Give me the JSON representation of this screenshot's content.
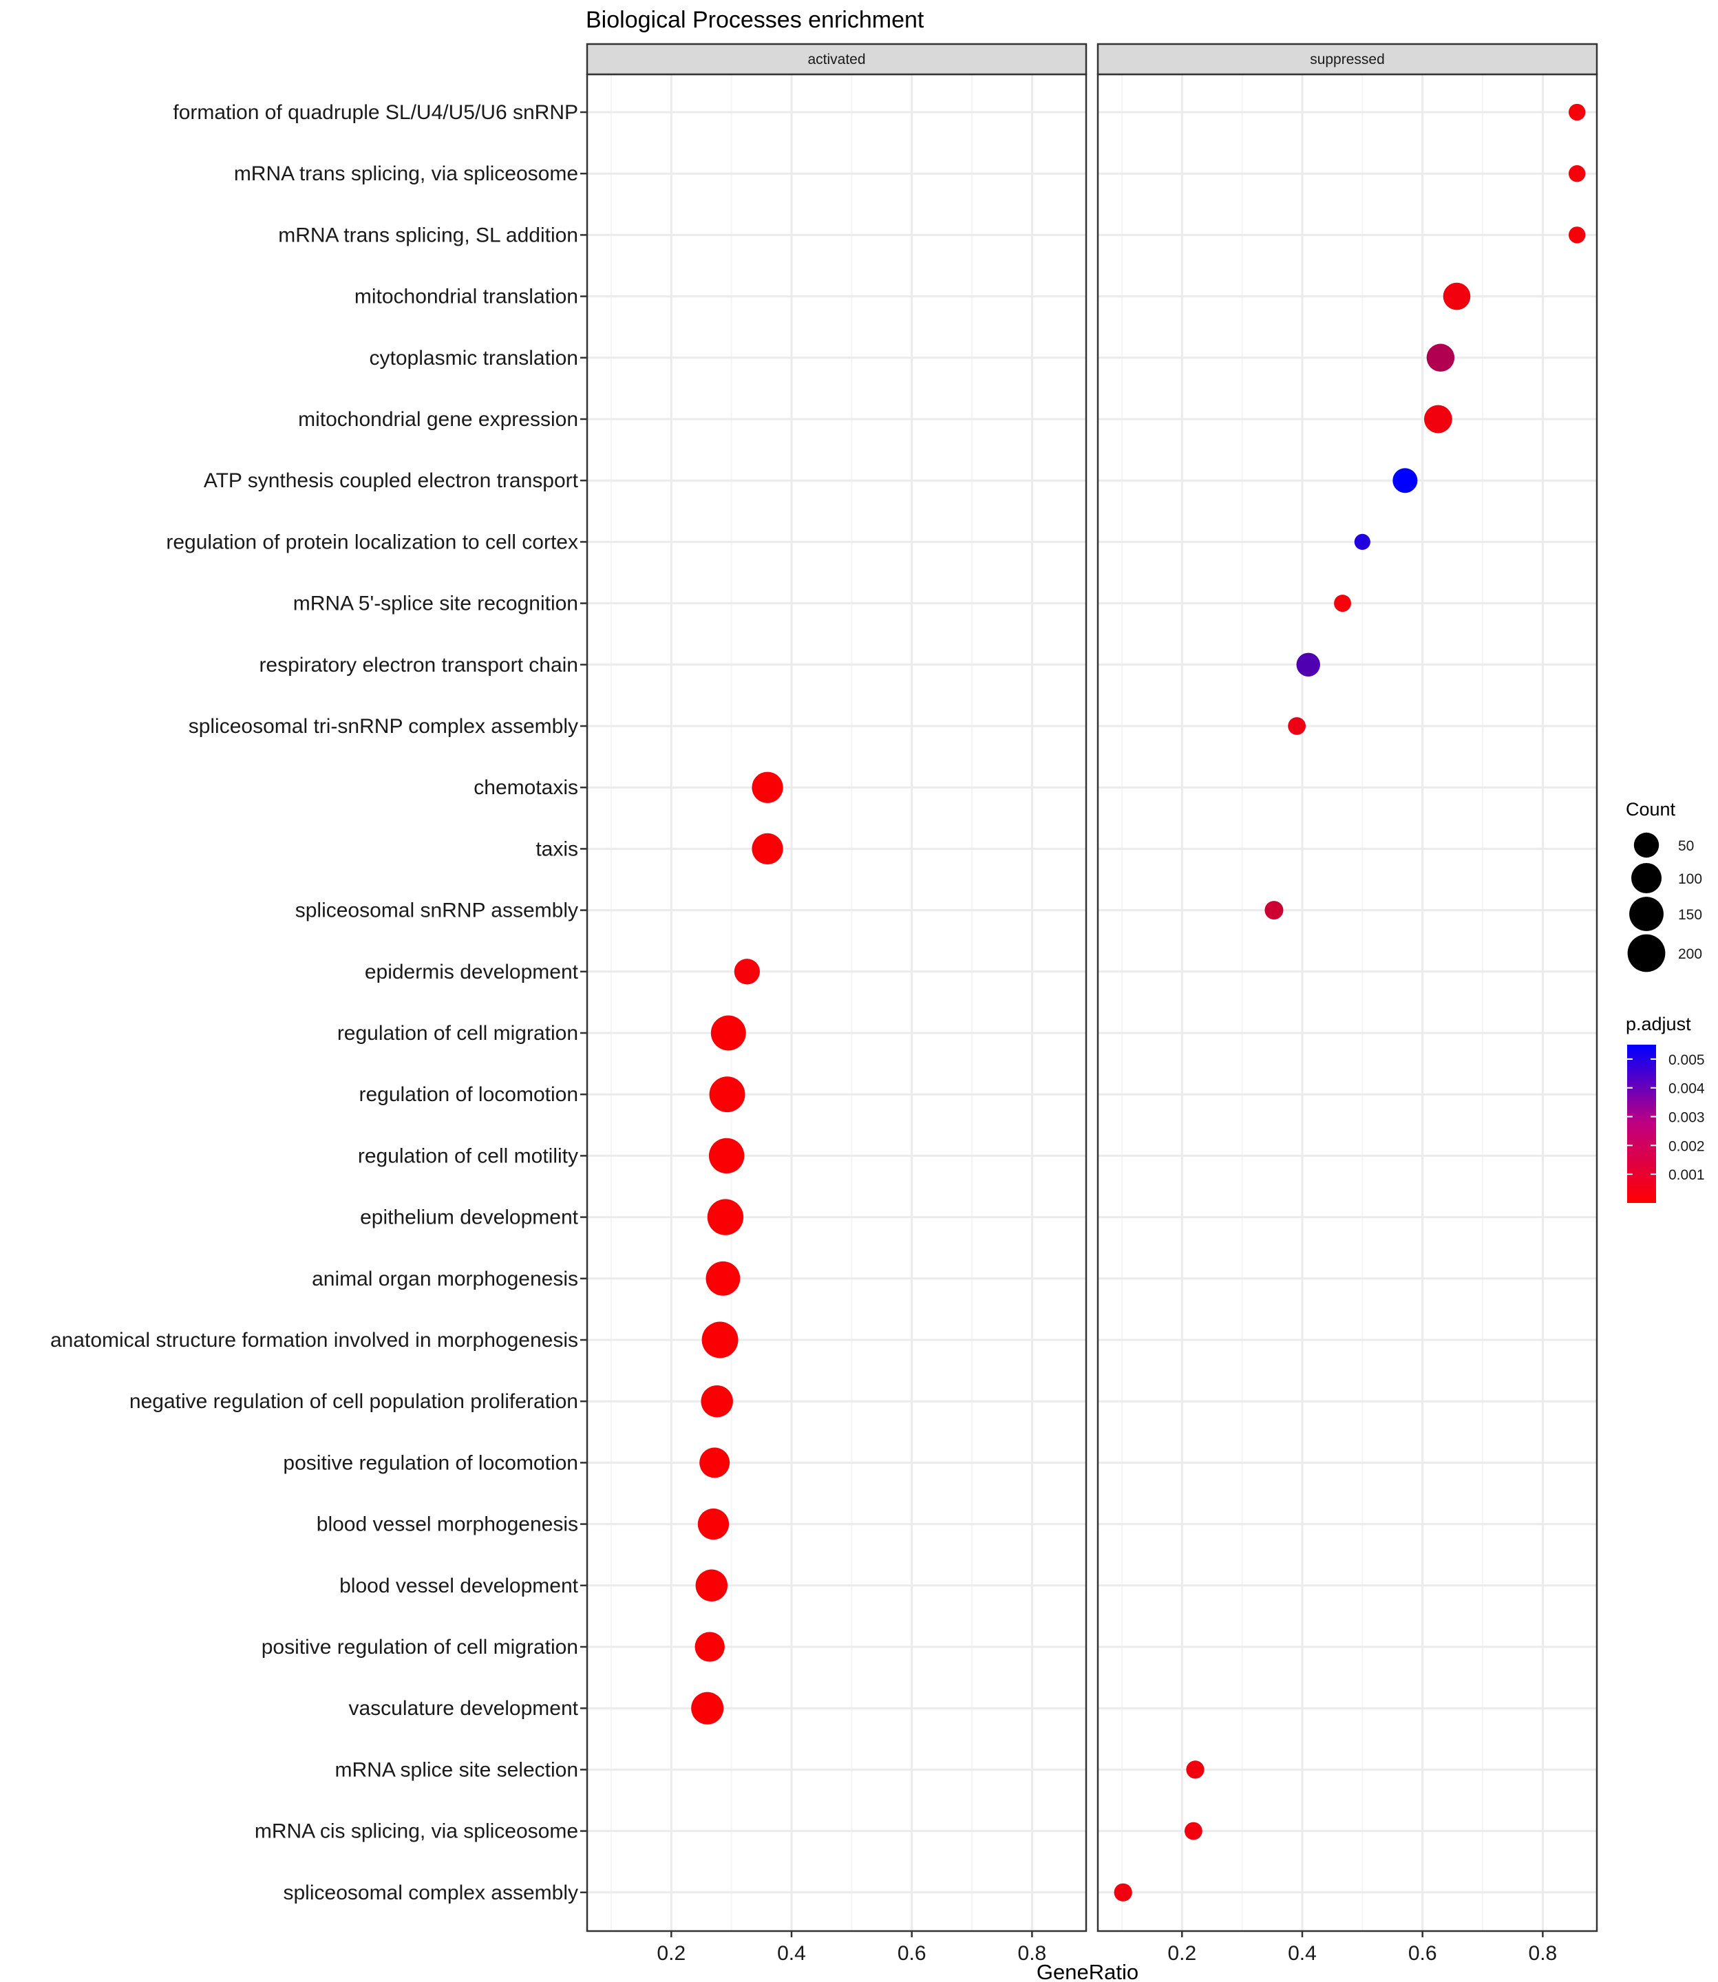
{
  "chart_data": {
    "type": "scatter",
    "title": "Biological Processes enrichment",
    "xlabel": "GeneRatio",
    "ylabel": "",
    "xlim": [
      0.06,
      0.89
    ],
    "xticks": [
      0.2,
      0.4,
      0.6,
      0.8
    ],
    "xtick_labels": [
      "0.2",
      "0.4",
      "0.6",
      "0.8"
    ],
    "grid": true,
    "panels": [
      "activated",
      "suppressed"
    ],
    "terms": [
      "formation of quadruple SL/U4/U5/U6 snRNP",
      "mRNA trans splicing, via spliceosome",
      "mRNA trans splicing, SL addition",
      "mitochondrial translation",
      "cytoplasmic translation",
      "mitochondrial gene expression",
      "ATP synthesis coupled electron transport",
      "regulation of protein localization to cell cortex",
      "mRNA 5'-splice site recognition",
      "respiratory electron transport chain",
      "spliceosomal tri-snRNP complex assembly",
      "chemotaxis",
      "taxis",
      "spliceosomal snRNP assembly",
      "epidermis development",
      "regulation of cell migration",
      "regulation of locomotion",
      "regulation of cell motility",
      "epithelium development",
      "animal organ morphogenesis",
      "anatomical structure formation involved in morphogenesis",
      "negative regulation of cell population proliferation",
      "positive regulation of locomotion",
      "blood vessel morphogenesis",
      "blood vessel development",
      "positive regulation of cell migration",
      "vasculature development",
      "mRNA splice site selection",
      "mRNA cis splicing, via spliceosome",
      "spliceosomal complex assembly"
    ],
    "points": [
      {
        "term": "formation of quadruple SL/U4/U5/U6 snRNP",
        "panel": "suppressed",
        "gene_ratio": 0.857,
        "count": 6,
        "p_adjust": 0.0002
      },
      {
        "term": "mRNA trans splicing, via spliceosome",
        "panel": "suppressed",
        "gene_ratio": 0.857,
        "count": 6,
        "p_adjust": 0.0002
      },
      {
        "term": "mRNA trans splicing, SL addition",
        "panel": "suppressed",
        "gene_ratio": 0.857,
        "count": 6,
        "p_adjust": 0.0002
      },
      {
        "term": "mitochondrial translation",
        "panel": "suppressed",
        "gene_ratio": 0.657,
        "count": 69,
        "p_adjust": 0.0003
      },
      {
        "term": "cytoplasmic translation",
        "panel": "suppressed",
        "gene_ratio": 0.63,
        "count": 75,
        "p_adjust": 0.0017
      },
      {
        "term": "mitochondrial gene expression",
        "panel": "suppressed",
        "gene_ratio": 0.626,
        "count": 77,
        "p_adjust": 0.0003
      },
      {
        "term": "ATP synthesis coupled electron transport",
        "panel": "suppressed",
        "gene_ratio": 0.571,
        "count": 48,
        "p_adjust": 0.0055
      },
      {
        "term": "regulation of protein localization to cell cortex",
        "panel": "suppressed",
        "gene_ratio": 0.5,
        "count": 4,
        "p_adjust": 0.0048
      },
      {
        "term": "mRNA 5'-splice site recognition",
        "panel": "suppressed",
        "gene_ratio": 0.467,
        "count": 7,
        "p_adjust": 0.0002
      },
      {
        "term": "respiratory electron transport chain",
        "panel": "suppressed",
        "gene_ratio": 0.41,
        "count": 40,
        "p_adjust": 0.0038
      },
      {
        "term": "spliceosomal tri-snRNP complex assembly",
        "panel": "suppressed",
        "gene_ratio": 0.391,
        "count": 9,
        "p_adjust": 0.0004
      },
      {
        "term": "chemotaxis",
        "panel": "activated",
        "gene_ratio": 0.36,
        "count": 110,
        "p_adjust": 0.0001
      },
      {
        "term": "taxis",
        "panel": "activated",
        "gene_ratio": 0.36,
        "count": 110,
        "p_adjust": 0.0001
      },
      {
        "term": "spliceosomal snRNP assembly",
        "panel": "suppressed",
        "gene_ratio": 0.353,
        "count": 12,
        "p_adjust": 0.0011
      },
      {
        "term": "epidermis development",
        "panel": "activated",
        "gene_ratio": 0.326,
        "count": 55,
        "p_adjust": 0.0002
      },
      {
        "term": "regulation of cell migration",
        "panel": "activated",
        "gene_ratio": 0.295,
        "count": 160,
        "p_adjust": 0.0001
      },
      {
        "term": "regulation of locomotion",
        "panel": "activated",
        "gene_ratio": 0.293,
        "count": 170,
        "p_adjust": 0.0001
      },
      {
        "term": "regulation of cell motility",
        "panel": "activated",
        "gene_ratio": 0.292,
        "count": 165,
        "p_adjust": 0.0001
      },
      {
        "term": "epithelium development",
        "panel": "activated",
        "gene_ratio": 0.29,
        "count": 175,
        "p_adjust": 0.0001
      },
      {
        "term": "animal organ morphogenesis",
        "panel": "activated",
        "gene_ratio": 0.286,
        "count": 150,
        "p_adjust": 0.0001
      },
      {
        "term": "anatomical structure formation involved in morphogenesis",
        "panel": "activated",
        "gene_ratio": 0.281,
        "count": 180,
        "p_adjust": 0.0001
      },
      {
        "term": "negative regulation of cell population proliferation",
        "panel": "activated",
        "gene_ratio": 0.276,
        "count": 120,
        "p_adjust": 0.0001
      },
      {
        "term": "positive regulation of locomotion",
        "panel": "activated",
        "gene_ratio": 0.272,
        "count": 100,
        "p_adjust": 0.0001
      },
      {
        "term": "blood vessel morphogenesis",
        "panel": "activated",
        "gene_ratio": 0.27,
        "count": 110,
        "p_adjust": 0.0001
      },
      {
        "term": "blood vessel development",
        "panel": "activated",
        "gene_ratio": 0.267,
        "count": 120,
        "p_adjust": 0.0001
      },
      {
        "term": "positive regulation of cell migration",
        "panel": "activated",
        "gene_ratio": 0.264,
        "count": 95,
        "p_adjust": 0.0001
      },
      {
        "term": "vasculature development",
        "panel": "activated",
        "gene_ratio": 0.26,
        "count": 125,
        "p_adjust": 0.0001
      },
      {
        "term": "mRNA splice site selection",
        "panel": "suppressed",
        "gene_ratio": 0.222,
        "count": 10,
        "p_adjust": 0.0003
      },
      {
        "term": "mRNA cis splicing, via spliceosome",
        "panel": "suppressed",
        "gene_ratio": 0.219,
        "count": 9,
        "p_adjust": 0.0003
      },
      {
        "term": "spliceosomal complex assembly",
        "panel": "suppressed",
        "gene_ratio": 0.102,
        "count": 10,
        "p_adjust": 0.0003
      }
    ],
    "size_legend": {
      "title": "Count",
      "breaks": [
        50,
        100,
        150,
        200
      ],
      "labels": [
        "50",
        "100",
        "150",
        "200"
      ]
    },
    "color_legend": {
      "title": "p.adjust",
      "min": 0.0,
      "max": 0.0055,
      "low_color": "#ff0000",
      "high_color": "#0000ff",
      "breaks": [
        0.001,
        0.002,
        0.003,
        0.004,
        0.005
      ],
      "labels": [
        "0.001",
        "0.002",
        "0.003",
        "0.004",
        "0.005"
      ]
    },
    "legend_position": "right"
  },
  "colors": {
    "panel_border": "#333333",
    "grid_major": "#ebebeb",
    "grid_minor": "#f5f5f5",
    "strip_fill": "#d9d9d9",
    "background": "#ffffff"
  }
}
